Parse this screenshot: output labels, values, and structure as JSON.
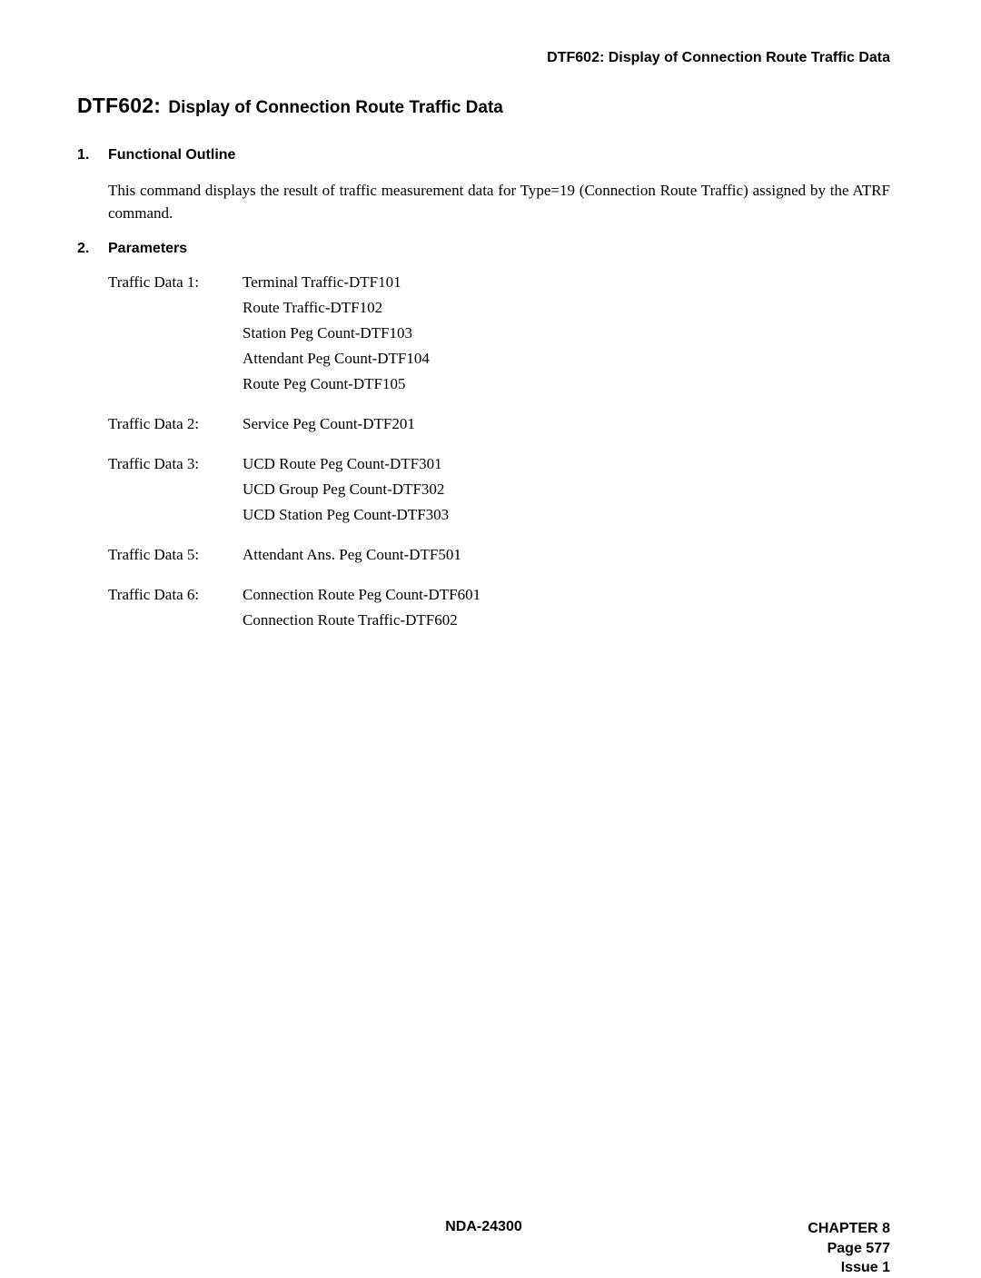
{
  "header": {
    "running": "DTF602: Display of Connection Route Traffic Data"
  },
  "title": {
    "code": "DTF602",
    "sep": ":",
    "rest": "Display of Connection Route Traffic Data"
  },
  "sections": {
    "s1": {
      "num": "1.",
      "heading": "Functional Outline",
      "para": "This command displays the result of traffic measurement data for Type=19 (Connection Route Traffic) assigned by the ATRF command."
    },
    "s2": {
      "num": "2.",
      "heading": "Parameters"
    }
  },
  "params": {
    "g1": {
      "label": "Traffic Data 1:",
      "i0": "Terminal Traffic-DTF101",
      "i1": "Route Traffic-DTF102",
      "i2": "Station Peg Count-DTF103",
      "i3": "Attendant Peg Count-DTF104",
      "i4": "Route Peg Count-DTF105"
    },
    "g2": {
      "label": "Traffic Data 2:",
      "i0": "Service Peg Count-DTF201"
    },
    "g3": {
      "label": "Traffic Data 3:",
      "i0": "UCD Route Peg Count-DTF301",
      "i1": "UCD Group Peg Count-DTF302",
      "i2": "UCD Station Peg Count-DTF303"
    },
    "g5": {
      "label": "Traffic Data 5:",
      "i0": "Attendant Ans. Peg Count-DTF501"
    },
    "g6": {
      "label": "Traffic Data 6:",
      "i0": "Connection Route Peg Count-DTF601",
      "i1": "Connection Route Traffic-DTF602"
    }
  },
  "footer": {
    "center": "NDA-24300",
    "chapter": "CHAPTER 8",
    "page": "Page 577",
    "issue": "Issue 1"
  }
}
